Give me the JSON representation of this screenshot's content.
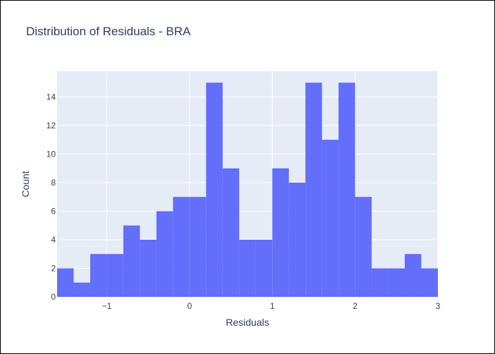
{
  "chart_data": {
    "type": "bar",
    "title": "Distribution of Residuals - BRA",
    "xlabel": "Residuals",
    "ylabel": "Count",
    "xlim": [
      -1.6,
      3.0
    ],
    "ylim": [
      0,
      15.8
    ],
    "bin_width": 0.2,
    "bin_starts": [
      -1.6,
      -1.4,
      -1.2,
      -1.0,
      -0.8,
      -0.6,
      -0.4,
      -0.2,
      0.0,
      0.2,
      0.4,
      0.6,
      0.8,
      1.0,
      1.2,
      1.4,
      1.6,
      1.8,
      2.0,
      2.2,
      2.4,
      2.6,
      2.8
    ],
    "values": [
      2,
      1,
      3,
      3,
      5,
      4,
      6,
      7,
      7,
      15,
      9,
      4,
      4,
      9,
      8,
      15,
      11,
      15,
      7,
      2,
      2,
      3,
      2
    ],
    "x_ticks": [
      -1,
      0,
      1,
      2,
      3
    ],
    "x_tick_labels": [
      "−1",
      "0",
      "1",
      "2",
      "3"
    ],
    "y_ticks": [
      0,
      2,
      4,
      6,
      8,
      10,
      12,
      14
    ],
    "y_tick_labels": [
      "0",
      "2",
      "4",
      "6",
      "8",
      "10",
      "12",
      "14"
    ],
    "grid": true,
    "colors": {
      "bar": "#636efa",
      "plot_bg": "#e5ecf6",
      "grid": "#ffffff",
      "text": "#2a3f5f"
    }
  }
}
